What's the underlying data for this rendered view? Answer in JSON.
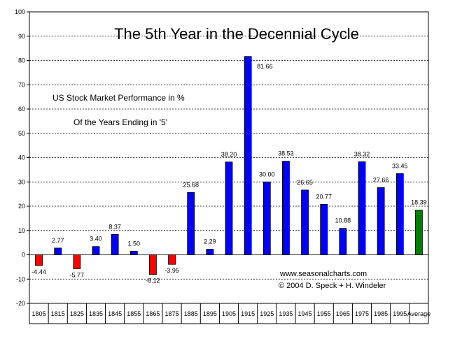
{
  "chart_data": {
    "type": "bar",
    "title": "The 5th Year in the Decennial Cycle",
    "subtitle_lines": [
      "US Stock Market Performance in %",
      "Of the Years Ending in '5'"
    ],
    "credit_lines": [
      "www.seasonalcharts.com",
      "© 2004 D. Speck + H. Windeler"
    ],
    "xlabel": "",
    "ylabel": "",
    "ylim": [
      -20,
      100
    ],
    "yticks": [
      -20,
      -10,
      0,
      10,
      20,
      30,
      40,
      50,
      60,
      70,
      80,
      90,
      100
    ],
    "grid": "horizontal-dashed",
    "categories": [
      "1805",
      "1815",
      "1825",
      "1835",
      "1845",
      "1855",
      "1865",
      "1875",
      "1885",
      "1895",
      "1905",
      "1915",
      "1925",
      "1935",
      "1945",
      "1955",
      "1965",
      "1975",
      "1985",
      "1995",
      "Average"
    ],
    "values": [
      -4.44,
      2.77,
      -5.77,
      3.4,
      8.37,
      1.5,
      -8.12,
      -3.95,
      25.68,
      2.29,
      38.2,
      81.66,
      30.0,
      38.53,
      26.65,
      20.77,
      10.88,
      38.32,
      27.66,
      33.45,
      18.39
    ],
    "value_labels": [
      "-4.44",
      "2.77",
      "-5.77",
      "3.40",
      "8.37",
      "1.50",
      "-8.12",
      "-3.95",
      "25.68",
      "2.29",
      "38.20",
      "81.66",
      "30.00",
      "38.53",
      "26.65",
      "20.77",
      "10.88",
      "38.32",
      "27.66",
      "33.45",
      "18.39"
    ],
    "colors": {
      "positive": "#0000ff",
      "negative": "#ff0000",
      "average": "#008000",
      "grid": "#000000"
    }
  }
}
